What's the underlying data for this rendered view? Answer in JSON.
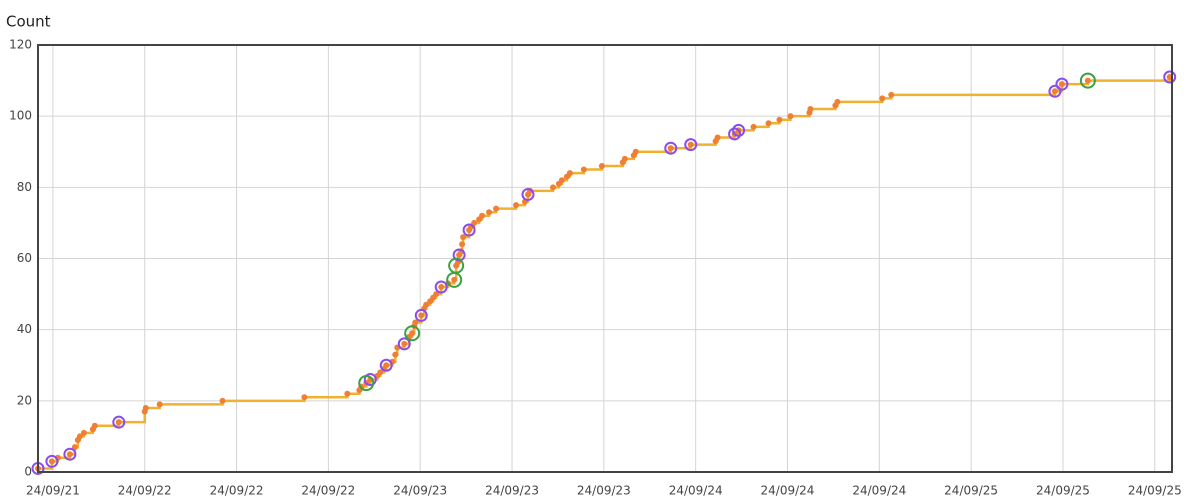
{
  "chart_data": {
    "type": "step",
    "y_label": "Count",
    "xlim": [
      -1.3,
      97.5
    ],
    "ylim": [
      0,
      120
    ],
    "xticks": [
      {
        "value": 0,
        "label": "24/09/21"
      },
      {
        "value": 8,
        "label": "24/09/22"
      },
      {
        "value": 16,
        "label": "24/09/22"
      },
      {
        "value": 24,
        "label": "24/09/22"
      },
      {
        "value": 32,
        "label": "24/09/23"
      },
      {
        "value": 40,
        "label": "24/09/23"
      },
      {
        "value": 48,
        "label": "24/09/23"
      },
      {
        "value": 56,
        "label": "24/09/24"
      },
      {
        "value": 64,
        "label": "24/09/24"
      },
      {
        "value": 72,
        "label": "24/09/24"
      },
      {
        "value": 80,
        "label": "24/09/25"
      },
      {
        "value": 88,
        "label": "24/09/25"
      },
      {
        "value": 96,
        "label": "24/09/25"
      }
    ],
    "yticks": [
      0,
      20,
      40,
      60,
      80,
      100,
      120
    ],
    "grid": true,
    "series": [
      {
        "color": "#f0b030",
        "marker_color": "#ef7f32",
        "marker": "dot",
        "x": [
          -1.3,
          -0.09,
          0.43,
          1.48,
          1.91,
          2.17,
          2.35,
          2.7,
          3.48,
          3.65,
          5.74,
          8.0,
          8.09,
          9.3,
          14.78,
          21.91,
          25.65,
          26.7,
          26.87,
          27.3,
          27.65,
          28.26,
          28.52,
          28.87,
          29.04,
          29.57,
          29.83,
          30.0,
          30.61,
          31.04,
          31.3,
          31.48,
          31.57,
          32.09,
          32.35,
          32.52,
          32.87,
          33.13,
          33.39,
          33.83,
          34.43,
          34.96,
          35.13,
          35.3,
          35.39,
          35.57,
          35.65,
          35.74,
          36.26,
          36.43,
          36.7,
          37.13,
          37.39,
          38.0,
          38.61,
          40.35,
          41.13,
          41.39,
          41.57,
          43.57,
          44.09,
          44.35,
          44.78,
          45.04,
          46.26,
          47.83,
          49.65,
          49.83,
          50.61,
          50.78,
          53.83,
          55.57,
          57.74,
          57.91,
          59.39,
          59.74,
          61.04,
          62.35,
          63.3,
          64.26,
          65.91,
          66.0,
          68.17,
          68.35,
          72.26,
          73.04,
          87.3,
          87.91,
          90.17,
          97.3
        ],
        "values": [
          1,
          3,
          4,
          5,
          7,
          9,
          10,
          11,
          12,
          13,
          14,
          17,
          18,
          19,
          20,
          21,
          22,
          23,
          24,
          25,
          26,
          27,
          28,
          29,
          30,
          31,
          33,
          35,
          36,
          38,
          39,
          41,
          42,
          44,
          46,
          47,
          48,
          49,
          50,
          52,
          53,
          54,
          58,
          59,
          61,
          62,
          64,
          66,
          68,
          69,
          70,
          71,
          72,
          73,
          74,
          75,
          76,
          78,
          79,
          80,
          81,
          82,
          83,
          84,
          85,
          86,
          87,
          88,
          89,
          90,
          91,
          92,
          93,
          94,
          95,
          96,
          97,
          98,
          99,
          100,
          101,
          102,
          103,
          104,
          105,
          106,
          107,
          109,
          110,
          111
        ]
      },
      {
        "color": "#8a4cf0",
        "marker": "ring",
        "x": [
          -1.3,
          -0.09,
          1.48,
          5.74,
          27.65,
          29.04,
          30.61,
          32.09,
          33.83,
          35.39,
          36.26,
          41.39,
          53.83,
          55.57,
          59.39,
          59.74,
          87.3,
          87.91,
          97.3
        ],
        "values": [
          1,
          3,
          5,
          14,
          26,
          30,
          36,
          44,
          52,
          61,
          68,
          78,
          91,
          92,
          95,
          96,
          107,
          109,
          111
        ]
      },
      {
        "color": "#3aa040",
        "marker": "ring-large",
        "x": [
          27.3,
          31.3,
          34.96,
          35.13,
          90.17
        ],
        "values": [
          25,
          39,
          54,
          58,
          110
        ]
      }
    ]
  }
}
